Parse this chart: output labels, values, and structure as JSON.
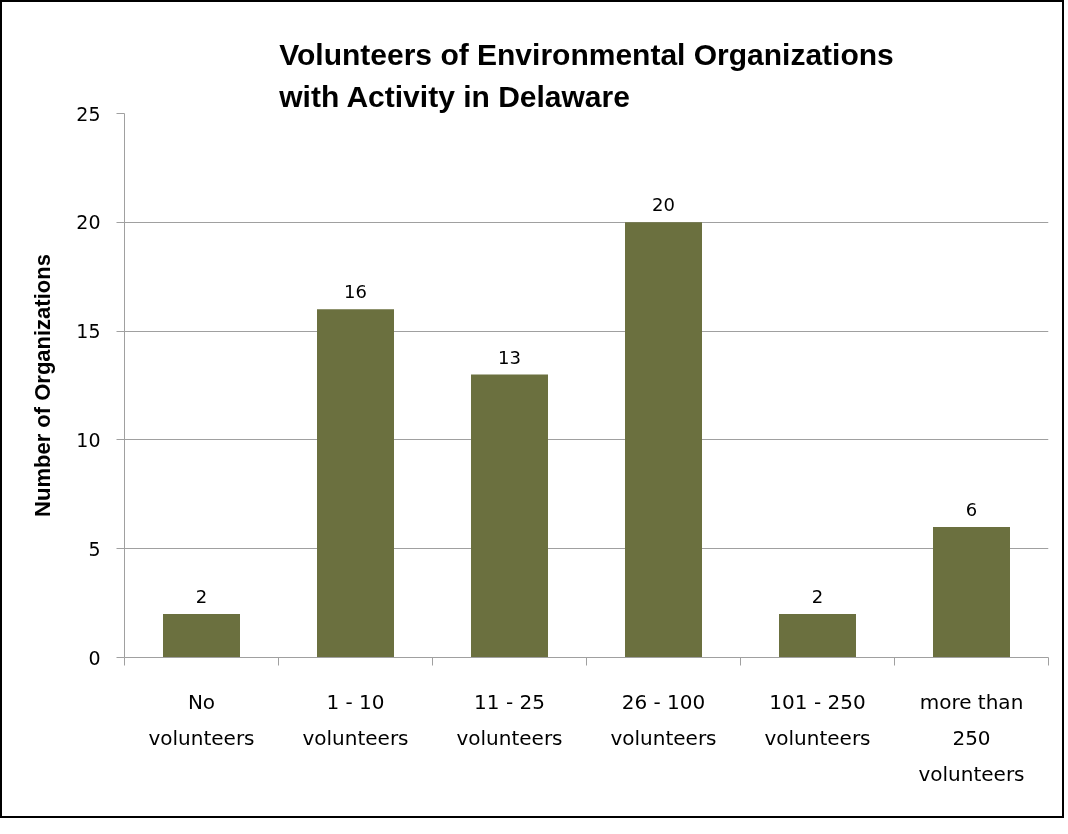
{
  "chart_data": {
    "type": "bar",
    "title": "Volunteers of Environmental Organizations\nwith Activity in Delaware",
    "ylabel": "Number of Organizations",
    "categories": [
      "No\nvolunteers",
      "1 - 10\nvolunteers",
      "11 - 25\nvolunteers",
      "26 - 100\nvolunteers",
      "101 - 250\nvolunteers",
      "more than\n250\nvolunteers"
    ],
    "values": [
      2,
      16,
      13,
      20,
      2,
      6
    ],
    "color": "#6b703f",
    "ylim": [
      0,
      25
    ],
    "yticks": [
      0,
      5,
      10,
      15,
      20,
      25
    ],
    "grid": "y",
    "data_labels": true
  }
}
